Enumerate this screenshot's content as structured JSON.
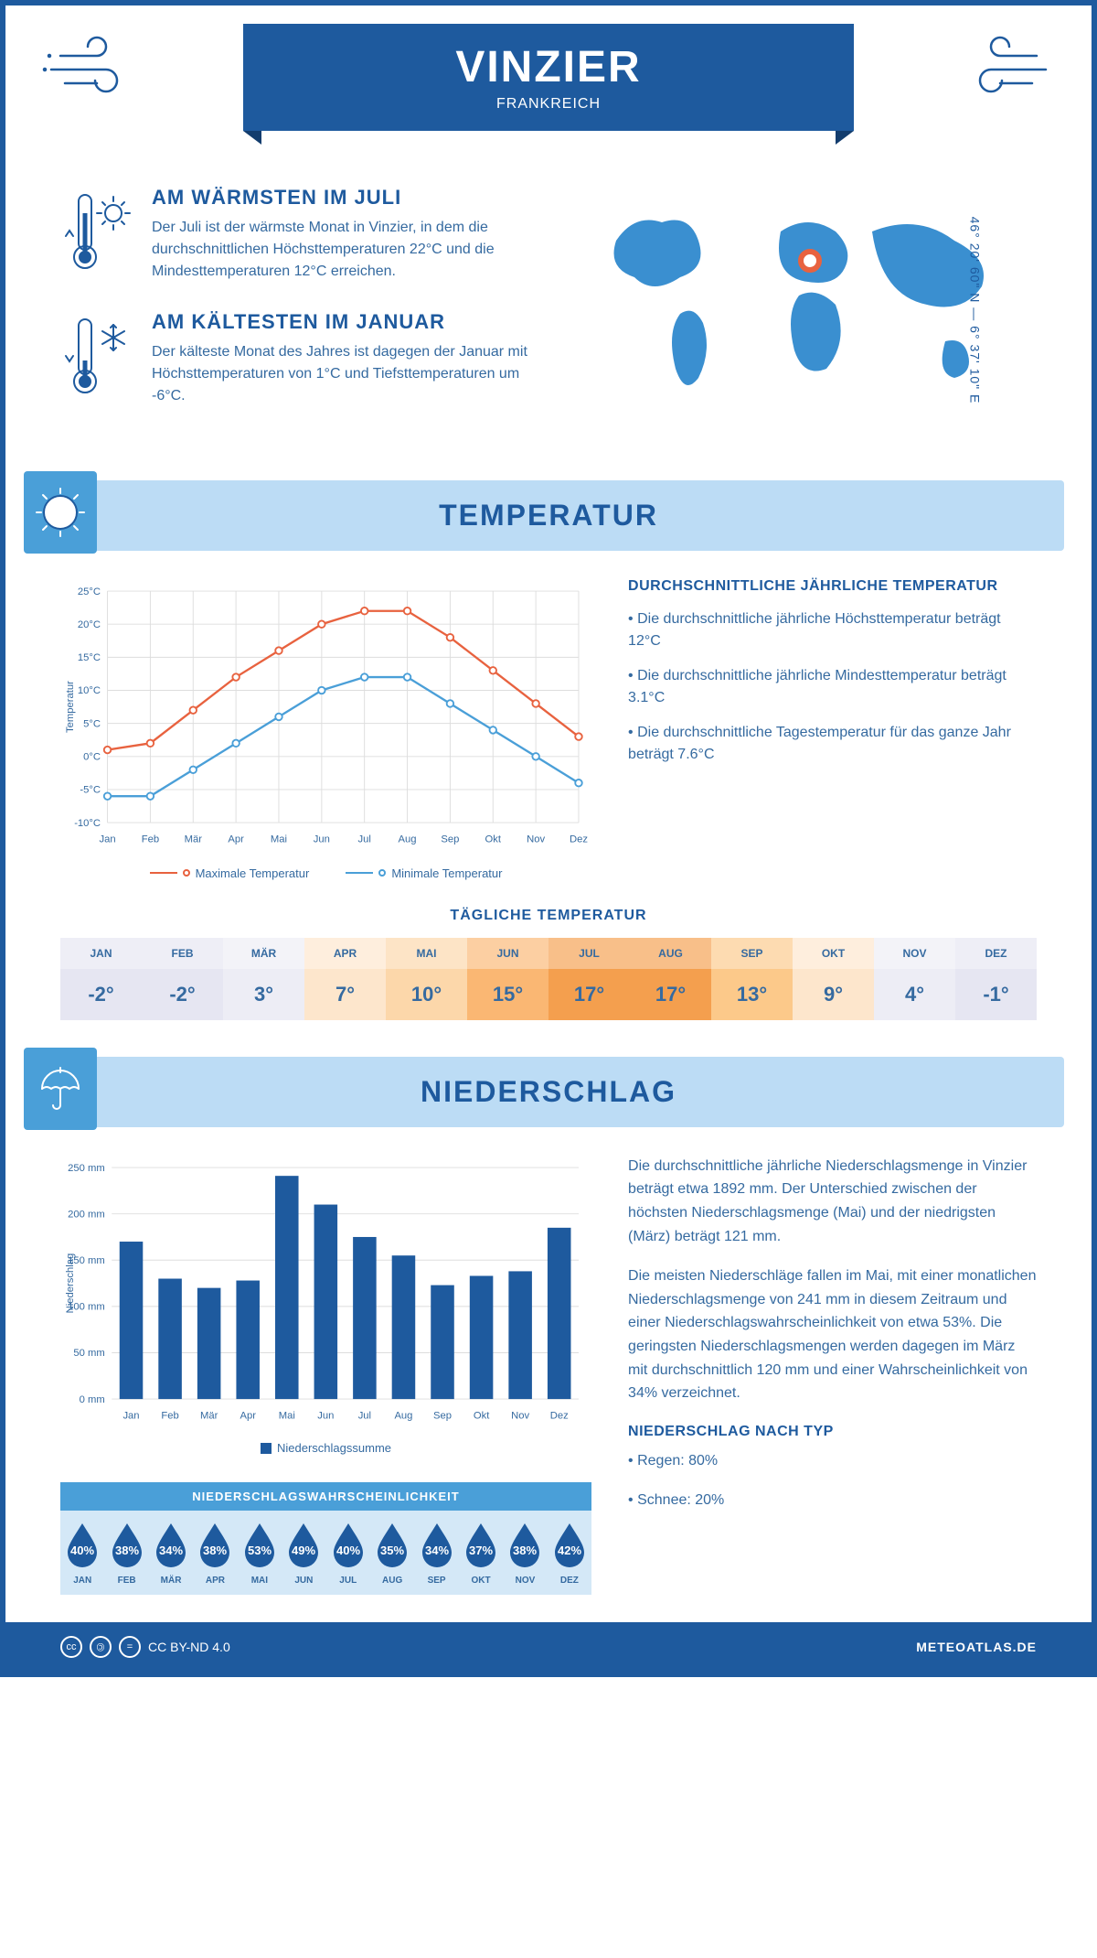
{
  "header": {
    "city": "VINZIER",
    "country": "FRANKREICH"
  },
  "coords": "46° 20' 60\" N — 6° 37' 10\" E",
  "warmest": {
    "title": "AM WÄRMSTEN IM JULI",
    "text": "Der Juli ist der wärmste Monat in Vinzier, in dem die durchschnittlichen Höchsttemperaturen 22°C und die Mindesttemperaturen 12°C erreichen."
  },
  "coldest": {
    "title": "AM KÄLTESTEN IM JANUAR",
    "text": "Der kälteste Monat des Jahres ist dagegen der Januar mit Höchsttemperaturen von 1°C und Tiefsttemperaturen um -6°C."
  },
  "temp": {
    "section_title": "TEMPERATUR",
    "info_title": "DURCHSCHNITTLICHE JÄHRLICHE TEMPERATUR",
    "bullets": [
      "• Die durchschnittliche jährliche Höchsttemperatur beträgt 12°C",
      "• Die durchschnittliche jährliche Mindesttemperatur beträgt 3.1°C",
      "• Die durchschnittliche Tagestemperatur für das ganze Jahr beträgt 7.6°C"
    ],
    "chart": {
      "months": [
        "Jan",
        "Feb",
        "Mär",
        "Apr",
        "Mai",
        "Jun",
        "Jul",
        "Aug",
        "Sep",
        "Okt",
        "Nov",
        "Dez"
      ],
      "max": [
        1,
        2,
        7,
        12,
        16,
        20,
        22,
        22,
        18,
        13,
        8,
        3
      ],
      "min": [
        -6,
        -6,
        -2,
        2,
        6,
        10,
        12,
        12,
        8,
        4,
        0,
        -4
      ],
      "ylim": [
        -10,
        25
      ],
      "ytick": 5,
      "y_label": "Temperatur",
      "max_color": "#e8623f",
      "min_color": "#4a9fd8",
      "grid_color": "#dddddd",
      "legend_max": "Maximale Temperatur",
      "legend_min": "Minimale Temperatur"
    },
    "daily_title": "TÄGLICHE TEMPERATUR",
    "daily": {
      "months": [
        "JAN",
        "FEB",
        "MÄR",
        "APR",
        "MAI",
        "JUN",
        "JUL",
        "AUG",
        "SEP",
        "OKT",
        "NOV",
        "DEZ"
      ],
      "values": [
        "-2°",
        "-2°",
        "3°",
        "7°",
        "10°",
        "15°",
        "17°",
        "17°",
        "13°",
        "9°",
        "4°",
        "-1°"
      ],
      "bg": [
        "#e6e6f2",
        "#e6e6f2",
        "#ededf5",
        "#fde6cc",
        "#fcd7aa",
        "#fab773",
        "#f49f4e",
        "#f49f4e",
        "#fcc98a",
        "#fde6cc",
        "#ededf5",
        "#e6e6f2"
      ]
    }
  },
  "precip": {
    "section_title": "NIEDERSCHLAG",
    "chart": {
      "months": [
        "Jan",
        "Feb",
        "Mär",
        "Apr",
        "Mai",
        "Jun",
        "Jul",
        "Aug",
        "Sep",
        "Okt",
        "Nov",
        "Dez"
      ],
      "values": [
        170,
        130,
        120,
        128,
        241,
        210,
        175,
        155,
        123,
        133,
        138,
        185
      ],
      "ylim": [
        0,
        250
      ],
      "ytick": 50,
      "y_label": "Niederschlag",
      "bar_color": "#1e5a9e",
      "grid_color": "#dddddd",
      "legend": "Niederschlagssumme"
    },
    "text1": "Die durchschnittliche jährliche Niederschlagsmenge in Vinzier beträgt etwa 1892 mm. Der Unterschied zwischen der höchsten Niederschlagsmenge (Mai) und der niedrigsten (März) beträgt 121 mm.",
    "text2": "Die meisten Niederschläge fallen im Mai, mit einer monatlichen Niederschlagsmenge von 241 mm in diesem Zeitraum und einer Niederschlagswahrscheinlichkeit von etwa 53%. Die geringsten Niederschlagsmengen werden dagegen im März mit durchschnittlich 120 mm und einer Wahrscheinlichkeit von 34% verzeichnet.",
    "type_title": "NIEDERSCHLAG NACH TYP",
    "types": [
      "• Regen: 80%",
      "• Schnee: 20%"
    ],
    "prob_title": "NIEDERSCHLAGSWAHRSCHEINLICHKEIT",
    "prob": {
      "months": [
        "JAN",
        "FEB",
        "MÄR",
        "APR",
        "MAI",
        "JUN",
        "JUL",
        "AUG",
        "SEP",
        "OKT",
        "NOV",
        "DEZ"
      ],
      "values": [
        "40%",
        "38%",
        "34%",
        "38%",
        "53%",
        "49%",
        "40%",
        "35%",
        "34%",
        "37%",
        "38%",
        "42%"
      ]
    }
  },
  "footer": {
    "license": "CC BY-ND 4.0",
    "site": "METEOATLAS.DE"
  }
}
